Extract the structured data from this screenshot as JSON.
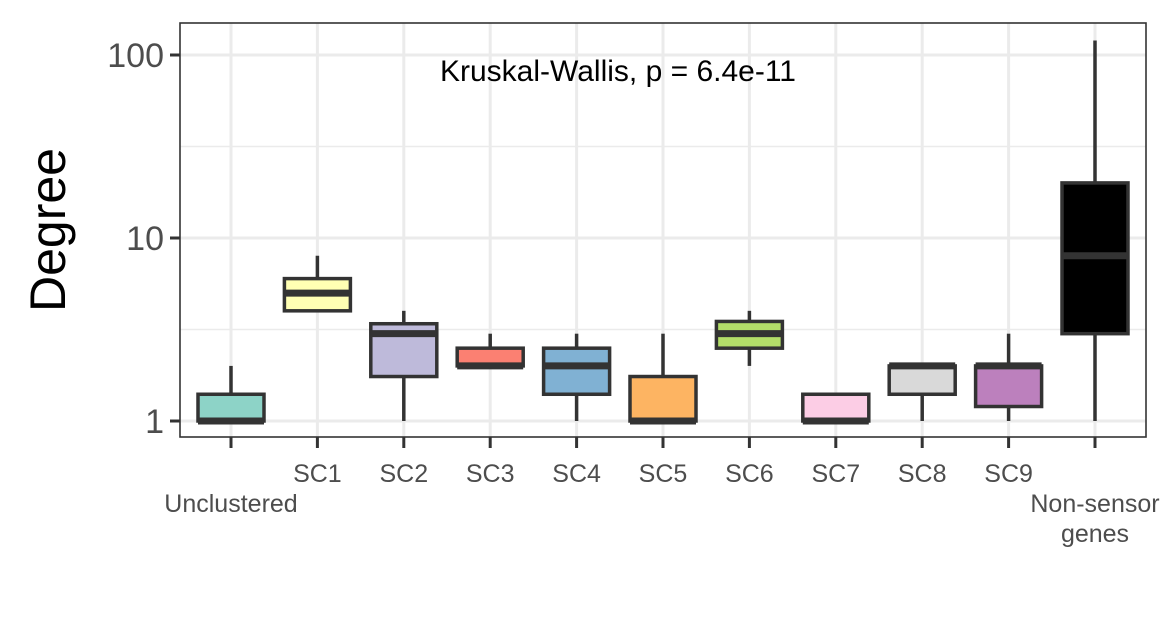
{
  "chart_data": {
    "type": "boxplot",
    "title": "",
    "xlabel": "",
    "ylabel": "Degree",
    "y_scale": "log10",
    "ylim": [
      0.78,
      150
    ],
    "y_ticks": [
      1,
      10,
      100
    ],
    "y_tick_labels": [
      "1",
      "10",
      "100"
    ],
    "grid": true,
    "annotation": "Kruskal-Wallis, p = 6.4e-11",
    "categories": [
      {
        "label": "Unclustered",
        "lines": [
          "",
          "Unclustered"
        ],
        "color": "#8DD3C7",
        "min": 1,
        "q1": 1,
        "median": 1,
        "q3": 1.4,
        "max": 2
      },
      {
        "label": "SC1",
        "lines": [
          "SC1"
        ],
        "color": "#FFFFB3",
        "min": 4,
        "q1": 4,
        "median": 5,
        "q3": 6,
        "max": 8
      },
      {
        "label": "SC2",
        "lines": [
          "SC2"
        ],
        "color": "#BEBADA",
        "min": 1,
        "q1": 1.75,
        "median": 3,
        "q3": 3.4,
        "max": 4
      },
      {
        "label": "SC3",
        "lines": [
          "SC3"
        ],
        "color": "#FB8072",
        "min": 2,
        "q1": 2,
        "median": 2,
        "q3": 2.5,
        "max": 3
      },
      {
        "label": "SC4",
        "lines": [
          "SC4"
        ],
        "color": "#80B1D3",
        "min": 1,
        "q1": 1.4,
        "median": 2,
        "q3": 2.5,
        "max": 3
      },
      {
        "label": "SC5",
        "lines": [
          "SC5"
        ],
        "color": "#FDB462",
        "min": 1,
        "q1": 1,
        "median": 1,
        "q3": 1.75,
        "max": 3
      },
      {
        "label": "SC6",
        "lines": [
          "SC6"
        ],
        "color": "#B3DE69",
        "min": 2,
        "q1": 2.5,
        "median": 3,
        "q3": 3.5,
        "max": 4
      },
      {
        "label": "SC7",
        "lines": [
          "SC7"
        ],
        "color": "#FCCDE5",
        "min": 1,
        "q1": 1,
        "median": 1,
        "q3": 1.4,
        "max": 1.4
      },
      {
        "label": "SC8",
        "lines": [
          "SC8"
        ],
        "color": "#D9D9D9",
        "min": 1,
        "q1": 1.4,
        "median": 2,
        "q3": 2,
        "max": 2
      },
      {
        "label": "SC9",
        "lines": [
          "SC9"
        ],
        "color": "#BC80BD",
        "min": 1,
        "q1": 1.2,
        "median": 2,
        "q3": 2,
        "max": 3
      },
      {
        "label": "Non-sensor genes",
        "lines": [
          "",
          "Non-sensor",
          "genes"
        ],
        "color": "#000000",
        "min": 1,
        "q1": 3,
        "median": 8,
        "q3": 20,
        "max": 120
      }
    ]
  }
}
